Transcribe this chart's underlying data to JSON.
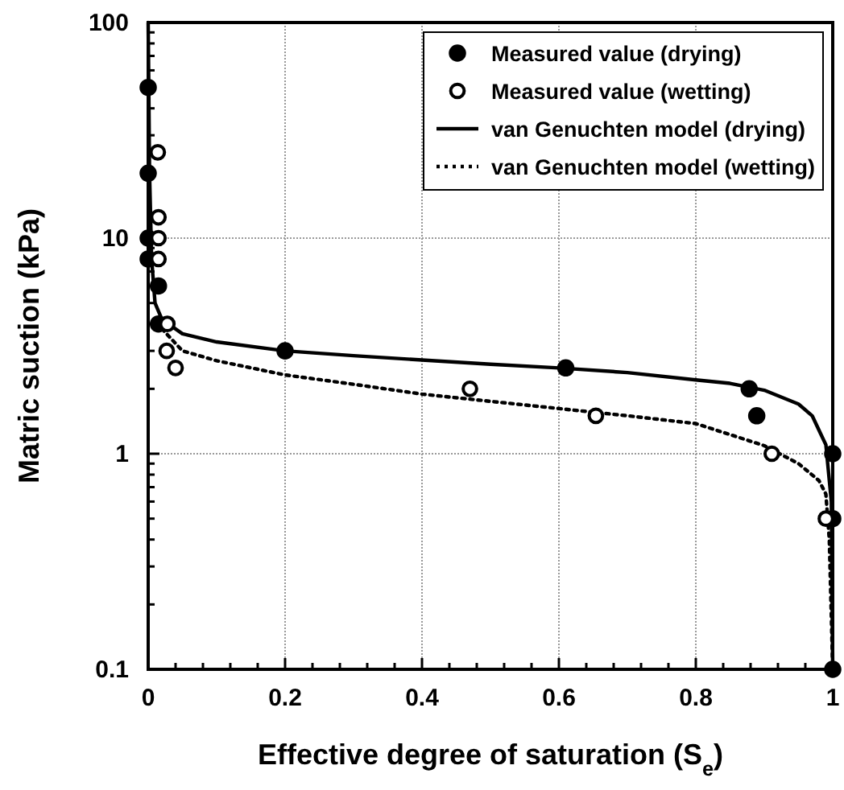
{
  "chart_data": {
    "type": "scatter",
    "xlabel": "Effective degree of saturation (S$_{e}$)",
    "ylabel": "Matric suction (kPa)",
    "log": "y",
    "grid": true,
    "legend": "top right",
    "xlim": [
      0,
      1
    ],
    "ylim": [
      0.1,
      100
    ],
    "xticks": [
      0,
      {
        "value": 0.04,
        "label": null
      },
      {
        "value": 0.08,
        "label": null
      },
      {
        "value": 0.12,
        "label": null
      },
      {
        "value": 0.16,
        "label": null
      },
      0.2,
      {
        "value": 0.24,
        "label": null
      },
      {
        "value": 0.28,
        "label": null
      },
      {
        "value": 0.32,
        "label": null
      },
      {
        "value": 0.36,
        "label": null
      },
      0.4,
      {
        "value": 0.44,
        "label": null
      },
      {
        "value": 0.48,
        "label": null
      },
      {
        "value": 0.52,
        "label": null
      },
      {
        "value": 0.56,
        "label": null
      },
      0.6,
      {
        "value": 0.64,
        "label": null
      },
      {
        "value": 0.68,
        "label": null
      },
      {
        "value": 0.72,
        "label": null
      },
      {
        "value": 0.76,
        "label": null
      },
      0.8,
      {
        "value": 0.84,
        "label": null
      },
      {
        "value": 0.88,
        "label": null
      },
      {
        "value": 0.92,
        "label": null
      },
      {
        "value": 0.96,
        "label": null
      },
      1
    ],
    "yticks": [
      0.1,
      {
        "value": 0.2,
        "label": null
      },
      {
        "value": 0.3,
        "label": null
      },
      {
        "value": 0.4,
        "label": null
      },
      {
        "value": 0.5,
        "label": null
      },
      {
        "value": 0.6,
        "label": null
      },
      {
        "value": 0.7,
        "label": null
      },
      {
        "value": 0.8,
        "label": null
      },
      {
        "value": 0.9,
        "label": null
      },
      1,
      {
        "value": 2,
        "label": null
      },
      {
        "value": 3,
        "label": null
      },
      {
        "value": 4,
        "label": null
      },
      {
        "value": 5,
        "label": null
      },
      {
        "value": 6,
        "label": null
      },
      {
        "value": 7,
        "label": null
      },
      {
        "value": 8,
        "label": null
      },
      {
        "value": 9,
        "label": null
      },
      10,
      {
        "value": 20,
        "label": null
      },
      {
        "value": 30,
        "label": null
      },
      {
        "value": 40,
        "label": null
      },
      {
        "value": 50,
        "label": null
      },
      {
        "value": 60,
        "label": null
      },
      {
        "value": 70,
        "label": null
      },
      {
        "value": 80,
        "label": null
      },
      {
        "value": 90,
        "label": null
      },
      100
    ],
    "series": [
      {
        "name": "Measured value (drying)",
        "marker": "circle",
        "color": "#000000",
        "x": [
          0,
          0,
          0,
          0,
          0.015,
          0.015,
          0.2,
          0.61,
          0.878,
          0.889,
          1,
          1,
          1
        ],
        "values": [
          50,
          20,
          10,
          8,
          6,
          4,
          3,
          2.5,
          2,
          1.5,
          1,
          0.5,
          0.1
        ]
      },
      {
        "name": "Measured value (wetting)",
        "marker": "circle",
        "color": "#ffffff",
        "x": [
          0.014,
          0.015,
          0.015,
          0.015,
          0.028,
          0.027,
          0.04,
          0.47,
          0.654,
          0.911,
          0.99
        ],
        "values": [
          25,
          12.5,
          10,
          8,
          4,
          3,
          2.5,
          2,
          1.5,
          1,
          0.5
        ]
      },
      {
        "name": "van Genuchten model (drying)",
        "type": "line",
        "line_style": "solid",
        "color": "#000000",
        "x": [
          0,
          0.002,
          0.005,
          0.01,
          0.02,
          0.05,
          0.1,
          0.2,
          0.3,
          0.4,
          0.5,
          0.6,
          0.7,
          0.8,
          0.85,
          0.9,
          0.95,
          0.97,
          0.99,
          0.998,
          1
        ],
        "values": [
          100,
          20,
          8,
          5,
          4.2,
          3.6,
          3.3,
          3,
          2.85,
          2.72,
          2.6,
          2.5,
          2.38,
          2.2,
          2.12,
          1.97,
          1.7,
          1.5,
          1.1,
          0.6,
          0.1
        ]
      },
      {
        "name": "van Genuchten model (wetting)",
        "type": "line",
        "line_style": "dotted",
        "color": "#000000",
        "x": [
          0.02,
          0.05,
          0.1,
          0.2,
          0.3,
          0.4,
          0.5,
          0.6,
          0.7,
          0.8,
          0.9,
          0.95,
          0.98,
          0.99,
          0.995,
          1
        ],
        "values": [
          3.8,
          3,
          2.7,
          2.32,
          2.1,
          1.89,
          1.75,
          1.62,
          1.5,
          1.38,
          1.09,
          0.9,
          0.75,
          0.65,
          0.4,
          0.1
        ]
      }
    ]
  }
}
